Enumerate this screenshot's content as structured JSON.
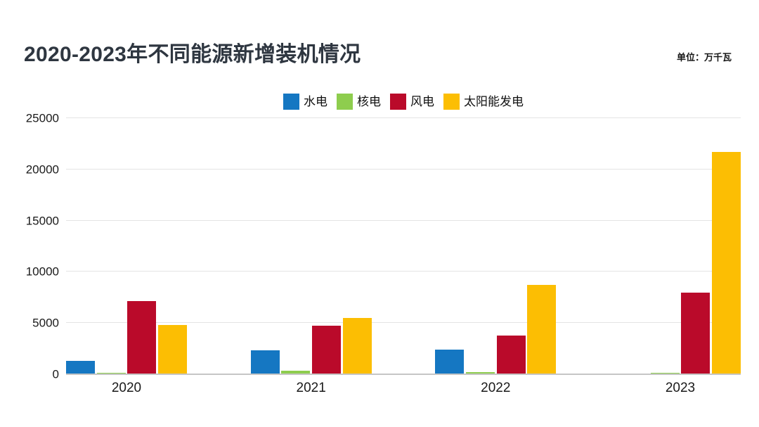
{
  "header": {
    "title": "2020-2023年不同能源新增装机情况",
    "unit_label": "单位：万千瓦"
  },
  "colors": {
    "hydro": "#1577c2",
    "nuclear": "#8ecd4e",
    "wind": "#ba0a2a",
    "solar": "#fcbe03",
    "gridline": "#e4e4e4",
    "axis_line": "#c6c6c6",
    "title_text": "#2e3640",
    "tick_text": "#1a1a1a"
  },
  "chart_data": {
    "type": "bar",
    "title": "2020-2023年不同能源新增装机情况",
    "unit": "万千瓦",
    "categories": [
      "2020",
      "2021",
      "2022",
      "2023"
    ],
    "series": [
      {
        "key": "hydro",
        "name": "水电",
        "color": "#1577c2",
        "values": [
          1323,
          2349,
          2387,
          0
        ]
      },
      {
        "key": "nuclear",
        "name": "核电",
        "color": "#8ecd4e",
        "values": [
          112,
          340,
          228,
          119
        ]
      },
      {
        "key": "wind",
        "name": "风电",
        "color": "#ba0a2a",
        "values": [
          7167,
          4757,
          3763,
          7937
        ]
      },
      {
        "key": "solar",
        "name": "太阳能发电",
        "color": "#fcbe03",
        "values": [
          4820,
          5488,
          8741,
          21688
        ]
      }
    ],
    "xlabel": "",
    "ylabel": "",
    "ylim": [
      0,
      25000
    ],
    "yticks": [
      0,
      5000,
      10000,
      15000,
      20000,
      25000
    ],
    "grid": true,
    "legend_position": "top"
  }
}
